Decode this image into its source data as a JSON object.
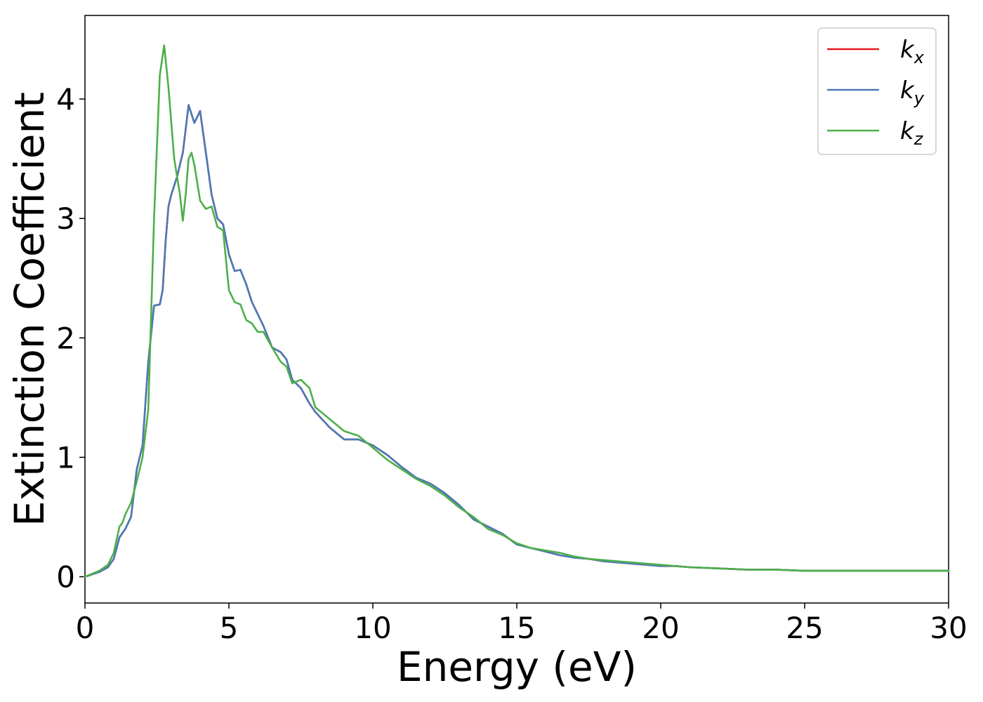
{
  "chart_data": {
    "type": "line",
    "title": "",
    "xlabel": "Energy (eV)",
    "ylabel": "Extinction Coefficient",
    "xlim": [
      0,
      30
    ],
    "ylim": [
      -0.22,
      4.7
    ],
    "xticks": [
      0,
      5,
      10,
      15,
      20,
      25,
      30
    ],
    "yticks": [
      0,
      1,
      2,
      3,
      4
    ],
    "grid": false,
    "legend_position": "top-right",
    "series": [
      {
        "name": "k",
        "subscript": "x",
        "color": "#e41a1c",
        "x": [
          0,
          0.5,
          0.8,
          1.0,
          1.2,
          1.4,
          1.6,
          1.8,
          2.0,
          2.2,
          2.4,
          2.6,
          2.7,
          2.8,
          2.9,
          3.0,
          3.2,
          3.4,
          3.6,
          3.8,
          4.0,
          4.2,
          4.4,
          4.6,
          4.8,
          5.0,
          5.2,
          5.4,
          5.6,
          5.8,
          6.0,
          6.2,
          6.5,
          6.8,
          7.0,
          7.2,
          7.5,
          7.8,
          8.0,
          8.5,
          9.0,
          9.5,
          10.0,
          10.5,
          11.0,
          11.5,
          12.0,
          12.5,
          13.0,
          13.5,
          14.0,
          14.5,
          15.0,
          15.5,
          16.0,
          16.5,
          17.0,
          17.5,
          18.0,
          18.5,
          19.0,
          19.5,
          20.0,
          20.5,
          21.0,
          22.0,
          23.0,
          24.0,
          25.0,
          26.0,
          27.0,
          28.0,
          29.0,
          30.0
        ],
        "y": [
          0,
          0.04,
          0.08,
          0.15,
          0.33,
          0.4,
          0.5,
          0.9,
          1.1,
          1.8,
          2.27,
          2.28,
          2.4,
          2.8,
          3.1,
          3.2,
          3.35,
          3.55,
          3.95,
          3.8,
          3.9,
          3.55,
          3.2,
          3.0,
          2.95,
          2.7,
          2.56,
          2.57,
          2.45,
          2.3,
          2.2,
          2.1,
          1.92,
          1.88,
          1.82,
          1.65,
          1.58,
          1.45,
          1.38,
          1.25,
          1.15,
          1.15,
          1.1,
          1.02,
          0.92,
          0.83,
          0.78,
          0.7,
          0.6,
          0.48,
          0.42,
          0.36,
          0.27,
          0.24,
          0.21,
          0.18,
          0.16,
          0.15,
          0.13,
          0.12,
          0.11,
          0.1,
          0.09,
          0.09,
          0.08,
          0.07,
          0.06,
          0.06,
          0.05,
          0.05,
          0.05,
          0.05,
          0.05,
          0.05
        ]
      },
      {
        "name": "k",
        "subscript": "y",
        "color": "#4a7ab8",
        "x": [
          0,
          0.5,
          0.8,
          1.0,
          1.2,
          1.4,
          1.6,
          1.8,
          2.0,
          2.2,
          2.4,
          2.6,
          2.7,
          2.8,
          2.9,
          3.0,
          3.2,
          3.4,
          3.6,
          3.8,
          4.0,
          4.2,
          4.4,
          4.6,
          4.8,
          5.0,
          5.2,
          5.4,
          5.6,
          5.8,
          6.0,
          6.2,
          6.5,
          6.8,
          7.0,
          7.2,
          7.5,
          7.8,
          8.0,
          8.5,
          9.0,
          9.5,
          10.0,
          10.5,
          11.0,
          11.5,
          12.0,
          12.5,
          13.0,
          13.5,
          14.0,
          14.5,
          15.0,
          15.5,
          16.0,
          16.5,
          17.0,
          17.5,
          18.0,
          18.5,
          19.0,
          19.5,
          20.0,
          20.5,
          21.0,
          22.0,
          23.0,
          24.0,
          25.0,
          26.0,
          27.0,
          28.0,
          29.0,
          30.0
        ],
        "y": [
          0,
          0.04,
          0.08,
          0.15,
          0.33,
          0.4,
          0.5,
          0.9,
          1.1,
          1.8,
          2.27,
          2.28,
          2.4,
          2.8,
          3.1,
          3.2,
          3.35,
          3.55,
          3.95,
          3.8,
          3.9,
          3.55,
          3.2,
          3.0,
          2.95,
          2.7,
          2.56,
          2.57,
          2.45,
          2.3,
          2.2,
          2.1,
          1.92,
          1.88,
          1.82,
          1.65,
          1.58,
          1.45,
          1.38,
          1.25,
          1.15,
          1.15,
          1.1,
          1.02,
          0.92,
          0.83,
          0.78,
          0.7,
          0.6,
          0.48,
          0.42,
          0.36,
          0.27,
          0.24,
          0.21,
          0.18,
          0.16,
          0.15,
          0.13,
          0.12,
          0.11,
          0.1,
          0.09,
          0.09,
          0.08,
          0.07,
          0.06,
          0.06,
          0.05,
          0.05,
          0.05,
          0.05,
          0.05,
          0.05
        ]
      },
      {
        "name": "k",
        "subscript": "z",
        "color": "#4daf4a",
        "x": [
          0,
          0.5,
          0.8,
          1.0,
          1.2,
          1.3,
          1.4,
          1.6,
          1.8,
          2.0,
          2.2,
          2.4,
          2.6,
          2.75,
          2.9,
          3.1,
          3.3,
          3.4,
          3.5,
          3.6,
          3.7,
          3.8,
          4.0,
          4.2,
          4.4,
          4.6,
          4.8,
          5.0,
          5.2,
          5.4,
          5.6,
          5.8,
          6.0,
          6.2,
          6.5,
          6.8,
          7.0,
          7.2,
          7.5,
          7.8,
          8.0,
          8.5,
          9.0,
          9.5,
          10.0,
          10.5,
          11.0,
          11.5,
          12.0,
          12.5,
          13.0,
          13.5,
          14.0,
          14.5,
          15.0,
          15.5,
          16.0,
          16.5,
          17.0,
          17.5,
          18.0,
          18.5,
          19.0,
          19.5,
          20.0,
          20.5,
          21.0,
          22.0,
          23.0,
          24.0,
          25.0,
          26.0,
          27.0,
          28.0,
          29.0,
          30.0
        ],
        "y": [
          0,
          0.05,
          0.1,
          0.2,
          0.42,
          0.45,
          0.52,
          0.62,
          0.8,
          1.0,
          1.4,
          3.0,
          4.2,
          4.45,
          4.1,
          3.5,
          3.2,
          2.98,
          3.2,
          3.5,
          3.55,
          3.45,
          3.15,
          3.08,
          3.1,
          2.93,
          2.9,
          2.4,
          2.3,
          2.28,
          2.15,
          2.12,
          2.05,
          2.05,
          1.92,
          1.8,
          1.76,
          1.62,
          1.65,
          1.58,
          1.42,
          1.32,
          1.22,
          1.18,
          1.08,
          0.98,
          0.9,
          0.82,
          0.76,
          0.68,
          0.58,
          0.5,
          0.4,
          0.35,
          0.28,
          0.24,
          0.22,
          0.2,
          0.17,
          0.15,
          0.14,
          0.13,
          0.12,
          0.11,
          0.1,
          0.09,
          0.08,
          0.07,
          0.06,
          0.06,
          0.05,
          0.05,
          0.05,
          0.05,
          0.05,
          0.05
        ]
      }
    ]
  }
}
